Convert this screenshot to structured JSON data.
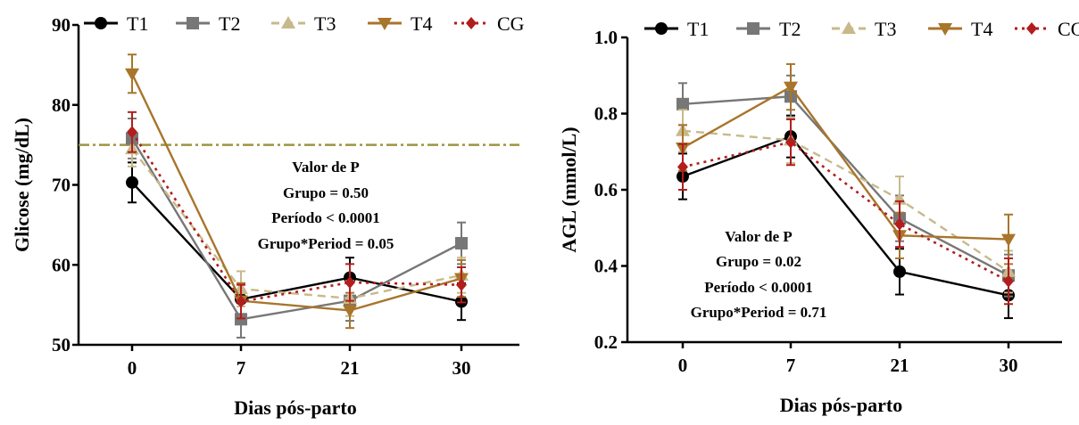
{
  "chart_data": [
    {
      "type": "line",
      "xlabel": "Dias pós-parto",
      "ylabel": "Glicose (mg/dL)",
      "categories": [
        "0",
        "7",
        "21",
        "30"
      ],
      "ylim": [
        50,
        90
      ],
      "yticks": [
        "50",
        "60",
        "70",
        "80",
        "90"
      ],
      "reference_line": 75,
      "series": [
        {
          "name": "T1",
          "values": [
            70.3,
            55.7,
            58.4,
            55.4
          ],
          "errors": [
            2.5,
            2.0,
            2.5,
            2.3
          ]
        },
        {
          "name": "T2",
          "values": [
            75.8,
            53.2,
            55.5,
            62.7
          ],
          "errors": [
            2.5,
            2.3,
            2.5,
            2.6
          ]
        },
        {
          "name": "T3",
          "values": [
            74.5,
            57.0,
            55.8,
            58.7
          ],
          "errors": [
            2.2,
            2.2,
            2.2,
            2.2
          ]
        },
        {
          "name": "T4",
          "values": [
            83.9,
            55.5,
            54.3,
            58.3
          ],
          "errors": [
            2.4,
            2.2,
            2.2,
            2.3
          ]
        },
        {
          "name": "CG",
          "values": [
            76.6,
            55.4,
            57.8,
            57.5
          ],
          "errors": [
            2.5,
            2.1,
            2.3,
            2.2
          ]
        }
      ],
      "annotation": [
        "Valor de P",
        "Grupo = 0.50",
        "Período < 0.0001",
        "Grupo*Period = 0.05"
      ]
    },
    {
      "type": "line",
      "xlabel": "Dias pós-parto",
      "ylabel": "AGL (mmol/L)",
      "categories": [
        "0",
        "7",
        "21",
        "30"
      ],
      "ylim": [
        0.2,
        1.0
      ],
      "yticks": [
        "0.2",
        "0.4",
        "0.6",
        "0.8",
        "1.0"
      ],
      "series": [
        {
          "name": "T1",
          "values": [
            0.635,
            0.74,
            0.385,
            0.323
          ],
          "errors": [
            0.06,
            0.055,
            0.06,
            0.06
          ]
        },
        {
          "name": "T2",
          "values": [
            0.825,
            0.845,
            0.525,
            0.375
          ],
          "errors": [
            0.055,
            0.055,
            0.06,
            0.055
          ]
        },
        {
          "name": "T3",
          "values": [
            0.755,
            0.73,
            0.575,
            0.385
          ],
          "errors": [
            0.055,
            0.06,
            0.06,
            0.055
          ]
        },
        {
          "name": "T4",
          "values": [
            0.71,
            0.87,
            0.48,
            0.47
          ],
          "errors": [
            0.06,
            0.06,
            0.06,
            0.065
          ]
        },
        {
          "name": "CG",
          "values": [
            0.66,
            0.725,
            0.51,
            0.36
          ],
          "errors": [
            0.06,
            0.06,
            0.06,
            0.06
          ]
        }
      ],
      "annotation": [
        "Valor de P",
        "Grupo = 0.02",
        "Período < 0.0001",
        "Grupo*Period = 0.71"
      ]
    }
  ],
  "legend": [
    "T1",
    "T2",
    "T3",
    "T4",
    "CG"
  ],
  "colors": {
    "T1": "#000000",
    "T2": "#777777",
    "T3": "#c8b98a",
    "T4": "#a8752a",
    "CG": "#b21d1d",
    "reference": "#9d9440"
  },
  "markers": {
    "T1": "circle-icon",
    "T2": "square-icon",
    "T3": "triangle-up-icon",
    "T4": "triangle-down-icon",
    "CG": "diamond-icon"
  }
}
